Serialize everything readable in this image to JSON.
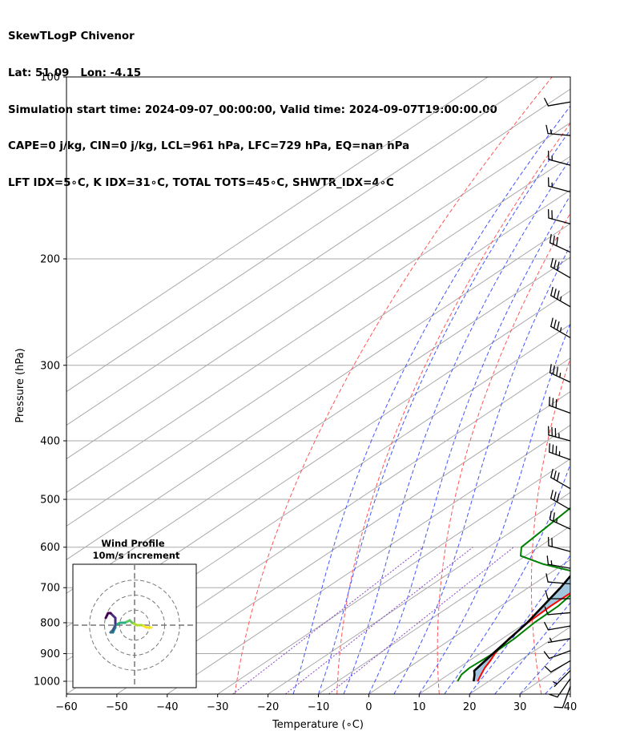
{
  "header": {
    "title": "SkewTLogP Chivenor",
    "location": "Lat: 51.09   Lon: -4.15",
    "times": "Simulation start time: 2024-09-07_00:00:00, Valid time: 2024-09-07T19:00:00.00",
    "indices1": "CAPE=0 j/kg, CIN=0 j/kg, LCL=961 hPa, LFC=729 hPa, EQ=nan hPa",
    "indices2": "LFT IDX=5∘C, K IDX=31∘C, TOTAL TOTS=45∘C, SHWTR_IDX=4∘C"
  },
  "colors": {
    "temperature": "#ff0000",
    "dewpoint": "#008000",
    "parcel": "#000000",
    "fill": "#a3c6df",
    "dry_adiabat": "#ff5555",
    "moist_adiabat": "#4455ff",
    "mixing_ratio": "#8844cc",
    "isotherm": "#aaaaaa",
    "isobar": "#aaaaaa"
  },
  "chart_data": {
    "type": "line",
    "subtype": "skew-T log-P",
    "xlabel": "Temperature (∘C)",
    "ylabel": "Pressure (hPa)",
    "xlim": [
      -60,
      40
    ],
    "ylim_hPa": [
      1050,
      100
    ],
    "x_ticks": [
      -60,
      -50,
      -40,
      -30,
      -20,
      -10,
      0,
      10,
      20,
      30,
      40
    ],
    "y_ticks": [
      1000,
      900,
      800,
      700,
      600,
      500,
      400,
      300,
      200,
      100
    ],
    "grid": true,
    "series": [
      {
        "key": "temperature",
        "points": [
          [
            1000,
            17.8
          ],
          [
            975,
            16.5
          ],
          [
            950,
            15.2
          ],
          [
            925,
            14.2
          ],
          [
            900,
            13.0
          ],
          [
            850,
            11.3
          ],
          [
            800,
            10.3
          ],
          [
            750,
            9.9
          ],
          [
            700,
            10.0
          ],
          [
            650,
            10.2
          ],
          [
            600,
            10.6
          ],
          [
            550,
            9.0
          ],
          [
            500,
            6.0
          ],
          [
            450,
            3.4
          ],
          [
            400,
            0.5
          ],
          [
            350,
            -4.2
          ],
          [
            300,
            -9.0
          ],
          [
            250,
            -12.0
          ],
          [
            240,
            -12.2
          ],
          [
            220,
            -8.6
          ],
          [
            200,
            -6.2
          ],
          [
            185,
            -3.4
          ],
          [
            170,
            -0.6
          ],
          [
            150,
            1.6
          ],
          [
            130,
            4.1
          ],
          [
            120,
            6.8
          ],
          [
            110,
            9.0
          ],
          [
            100,
            11.4
          ]
        ]
      },
      {
        "key": "dewpoint",
        "points": [
          [
            1000,
            13.8
          ],
          [
            975,
            12.6
          ],
          [
            950,
            12.2
          ],
          [
            925,
            12.4
          ],
          [
            900,
            12.6
          ],
          [
            850,
            12.4
          ],
          [
            800,
            11.6
          ],
          [
            750,
            11.4
          ],
          [
            700,
            10.0
          ],
          [
            660,
            5.0
          ],
          [
            640,
            -4.0
          ],
          [
            620,
            -11.0
          ],
          [
            600,
            -13.4
          ],
          [
            500,
            -15.8
          ],
          [
            450,
            -21.0
          ],
          [
            410,
            -27.5
          ],
          [
            360,
            -28.6
          ],
          [
            320,
            -29.4
          ],
          [
            290,
            -31.8
          ],
          [
            270,
            -33.0
          ],
          [
            250,
            -33.0
          ],
          [
            220,
            -35.6
          ],
          [
            200,
            -39.0
          ],
          [
            190,
            -41.2
          ],
          [
            180,
            -41.6
          ],
          [
            160,
            -40.0
          ],
          [
            150,
            -39.0
          ],
          [
            130,
            -34.8
          ],
          [
            115,
            -32.2
          ],
          [
            100,
            -28.8
          ]
        ]
      },
      {
        "key": "parcel",
        "points": [
          [
            1000,
            17.0
          ],
          [
            975,
            15.2
          ],
          [
            961,
            14.0
          ],
          [
            900,
            12.6
          ],
          [
            800,
            10.2
          ],
          [
            700,
            6.4
          ],
          [
            600,
            1.2
          ],
          [
            500,
            -6.6
          ],
          [
            400,
            -18.2
          ],
          [
            300,
            -34.6
          ],
          [
            250,
            -45.5
          ],
          [
            200,
            -58.0
          ],
          [
            150,
            -74.0
          ],
          [
            100,
            -98.0
          ]
        ]
      }
    ],
    "fill_between": {
      "from": "parcel",
      "to": "temperature",
      "color": "#a3c6df"
    },
    "wind_barbs": [
      {
        "p": 1020,
        "dir": 200,
        "spd": 10
      },
      {
        "p": 990,
        "dir": 215,
        "spd": 10
      },
      {
        "p": 960,
        "dir": 225,
        "spd": 5
      },
      {
        "p": 925,
        "dir": 240,
        "spd": 10
      },
      {
        "p": 890,
        "dir": 250,
        "spd": 10
      },
      {
        "p": 850,
        "dir": 260,
        "spd": 5
      },
      {
        "p": 810,
        "dir": 260,
        "spd": 10
      },
      {
        "p": 770,
        "dir": 265,
        "spd": 10
      },
      {
        "p": 730,
        "dir": 270,
        "spd": 10
      },
      {
        "p": 690,
        "dir": 275,
        "spd": 10
      },
      {
        "p": 650,
        "dir": 280,
        "spd": 15
      },
      {
        "p": 610,
        "dir": 285,
        "spd": 20
      },
      {
        "p": 560,
        "dir": 295,
        "spd": 25
      },
      {
        "p": 520,
        "dir": 300,
        "spd": 30
      },
      {
        "p": 480,
        "dir": 300,
        "spd": 30
      },
      {
        "p": 430,
        "dir": 290,
        "spd": 35
      },
      {
        "p": 400,
        "dir": 285,
        "spd": 35
      },
      {
        "p": 360,
        "dir": 290,
        "spd": 30
      },
      {
        "p": 320,
        "dir": 295,
        "spd": 35
      },
      {
        "p": 270,
        "dir": 300,
        "spd": 35
      },
      {
        "p": 240,
        "dir": 300,
        "spd": 35
      },
      {
        "p": 215,
        "dir": 300,
        "spd": 30
      },
      {
        "p": 195,
        "dir": 295,
        "spd": 30
      },
      {
        "p": 175,
        "dir": 285,
        "spd": 20
      },
      {
        "p": 155,
        "dir": 285,
        "spd": 15
      },
      {
        "p": 140,
        "dir": 285,
        "spd": 15
      },
      {
        "p": 125,
        "dir": 275,
        "spd": 15
      },
      {
        "p": 110,
        "dir": 260,
        "spd": 10
      }
    ]
  },
  "hodograph": {
    "title": "Wind Profile",
    "subtitle": "10m/s increment",
    "ring_increment_ms": 10,
    "ring_count": 3,
    "range_ms": [
      -10,
      10
    ],
    "points": [
      [
        7,
        -1
      ],
      [
        5,
        -1
      ],
      [
        3,
        0
      ],
      [
        1,
        0
      ],
      [
        -1,
        1
      ],
      [
        -2,
        2
      ],
      [
        -4,
        1
      ],
      [
        -6,
        1
      ],
      [
        -8,
        0
      ],
      [
        -8,
        -1
      ],
      [
        -9,
        -3
      ],
      [
        -10,
        -3
      ],
      [
        -9,
        -2
      ],
      [
        -8,
        0
      ],
      [
        -8,
        1
      ],
      [
        -8,
        3
      ],
      [
        -10,
        5
      ],
      [
        -11,
        5
      ],
      [
        -12,
        3
      ]
    ]
  }
}
